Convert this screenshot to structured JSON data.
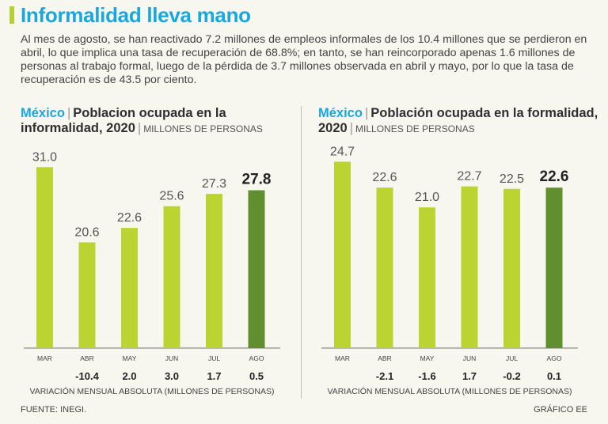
{
  "header": {
    "title": "Informalidad lleva mano",
    "intro": "Al mes de agosto, se han reactivado 7.2 millones de empleos informales de los 10.4 millones que se perdieron en abril, lo que implica una tasa de recuperación de 68.8%; en tanto, se han reincorporado apenas 1.6 millones de personas al trabajo formal, luego de la pérdida de 3.7 millones observada en abril y mayo, por lo que la tasa de recuperación es de 43.5 por ciento."
  },
  "colors": {
    "accent": "#19a7df",
    "bar": "#bcd432",
    "bar_highlight": "#5f8f2f",
    "background": "#f7f6ef"
  },
  "panels": [
    {
      "country": "México",
      "title": "Poblacion ocupada en la informalidad, 2020",
      "unit": "MILLONES DE PERSONAS"
    },
    {
      "country": "México",
      "title": "Población ocupada en la formalidad, 2020",
      "unit": "MILLONES DE PERSONAS"
    }
  ],
  "footer": {
    "source": "FUENTE: INEGI.",
    "credit": "GRÁFICO EE"
  },
  "chart_data": [
    {
      "type": "bar",
      "categories": [
        "MAR",
        "ABR",
        "MAY",
        "JUN",
        "JUL",
        "AGO"
      ],
      "values": [
        31.0,
        20.6,
        22.6,
        25.6,
        27.3,
        27.8
      ],
      "value_labels": [
        "31.0",
        "20.6",
        "22.6",
        "25.6",
        "27.3",
        "27.8"
      ],
      "variation_labels": [
        "",
        "-10.4",
        "2.0",
        "3.0",
        "1.7",
        "0.5"
      ],
      "variation_label": "VARIACIÓN MENSUAL ABSOLUTA (MILLONES DE PERSONAS)",
      "highlight_last": true
    },
    {
      "type": "bar",
      "categories": [
        "MAR",
        "ABR",
        "MAY",
        "JUN",
        "JUL",
        "AGO"
      ],
      "values": [
        24.7,
        22.6,
        21.0,
        22.7,
        22.5,
        22.6
      ],
      "value_labels": [
        "24.7",
        "22.6",
        "21.0",
        "22.7",
        "22.5",
        "22.6"
      ],
      "variation_labels": [
        "",
        "-2.1",
        "-1.6",
        "1.7",
        "-0.2",
        "0.1"
      ],
      "variation_label": "VARIACIÓN MENSUAL ABSOLUTA (MILLONES DE PERSONAS)",
      "highlight_last": true
    }
  ]
}
